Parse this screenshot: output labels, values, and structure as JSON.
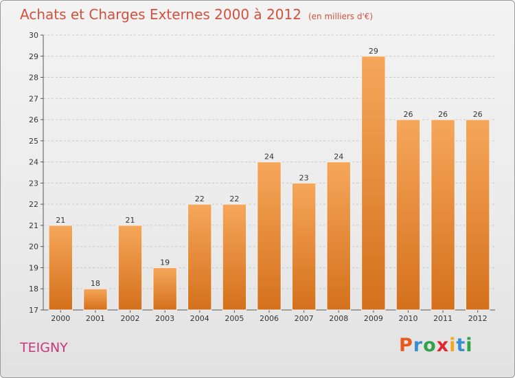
{
  "chart_data": {
    "type": "bar",
    "title": "Achats et Charges Externes 2000 à 2012",
    "subtitle": "(en milliers d'€)",
    "categories": [
      "2000",
      "2001",
      "2002",
      "2003",
      "2004",
      "2005",
      "2006",
      "2007",
      "2008",
      "2009",
      "2010",
      "2011",
      "2012"
    ],
    "values": [
      21,
      18,
      21,
      19,
      22,
      22,
      24,
      23,
      24,
      29,
      26,
      26,
      26
    ],
    "ylim": [
      17,
      30
    ],
    "yticks": [
      17,
      18,
      19,
      20,
      21,
      22,
      23,
      24,
      25,
      26,
      27,
      28,
      29,
      30
    ],
    "grid": true,
    "bar_color_top": "#f6a75a",
    "bar_color_bottom": "#d4701c"
  },
  "footer": {
    "location": "TEIGNY",
    "brand": {
      "p": "P",
      "r": "r",
      "o": "o",
      "x": "x",
      "i1": "i",
      "t": "t",
      "i2": "i"
    }
  }
}
